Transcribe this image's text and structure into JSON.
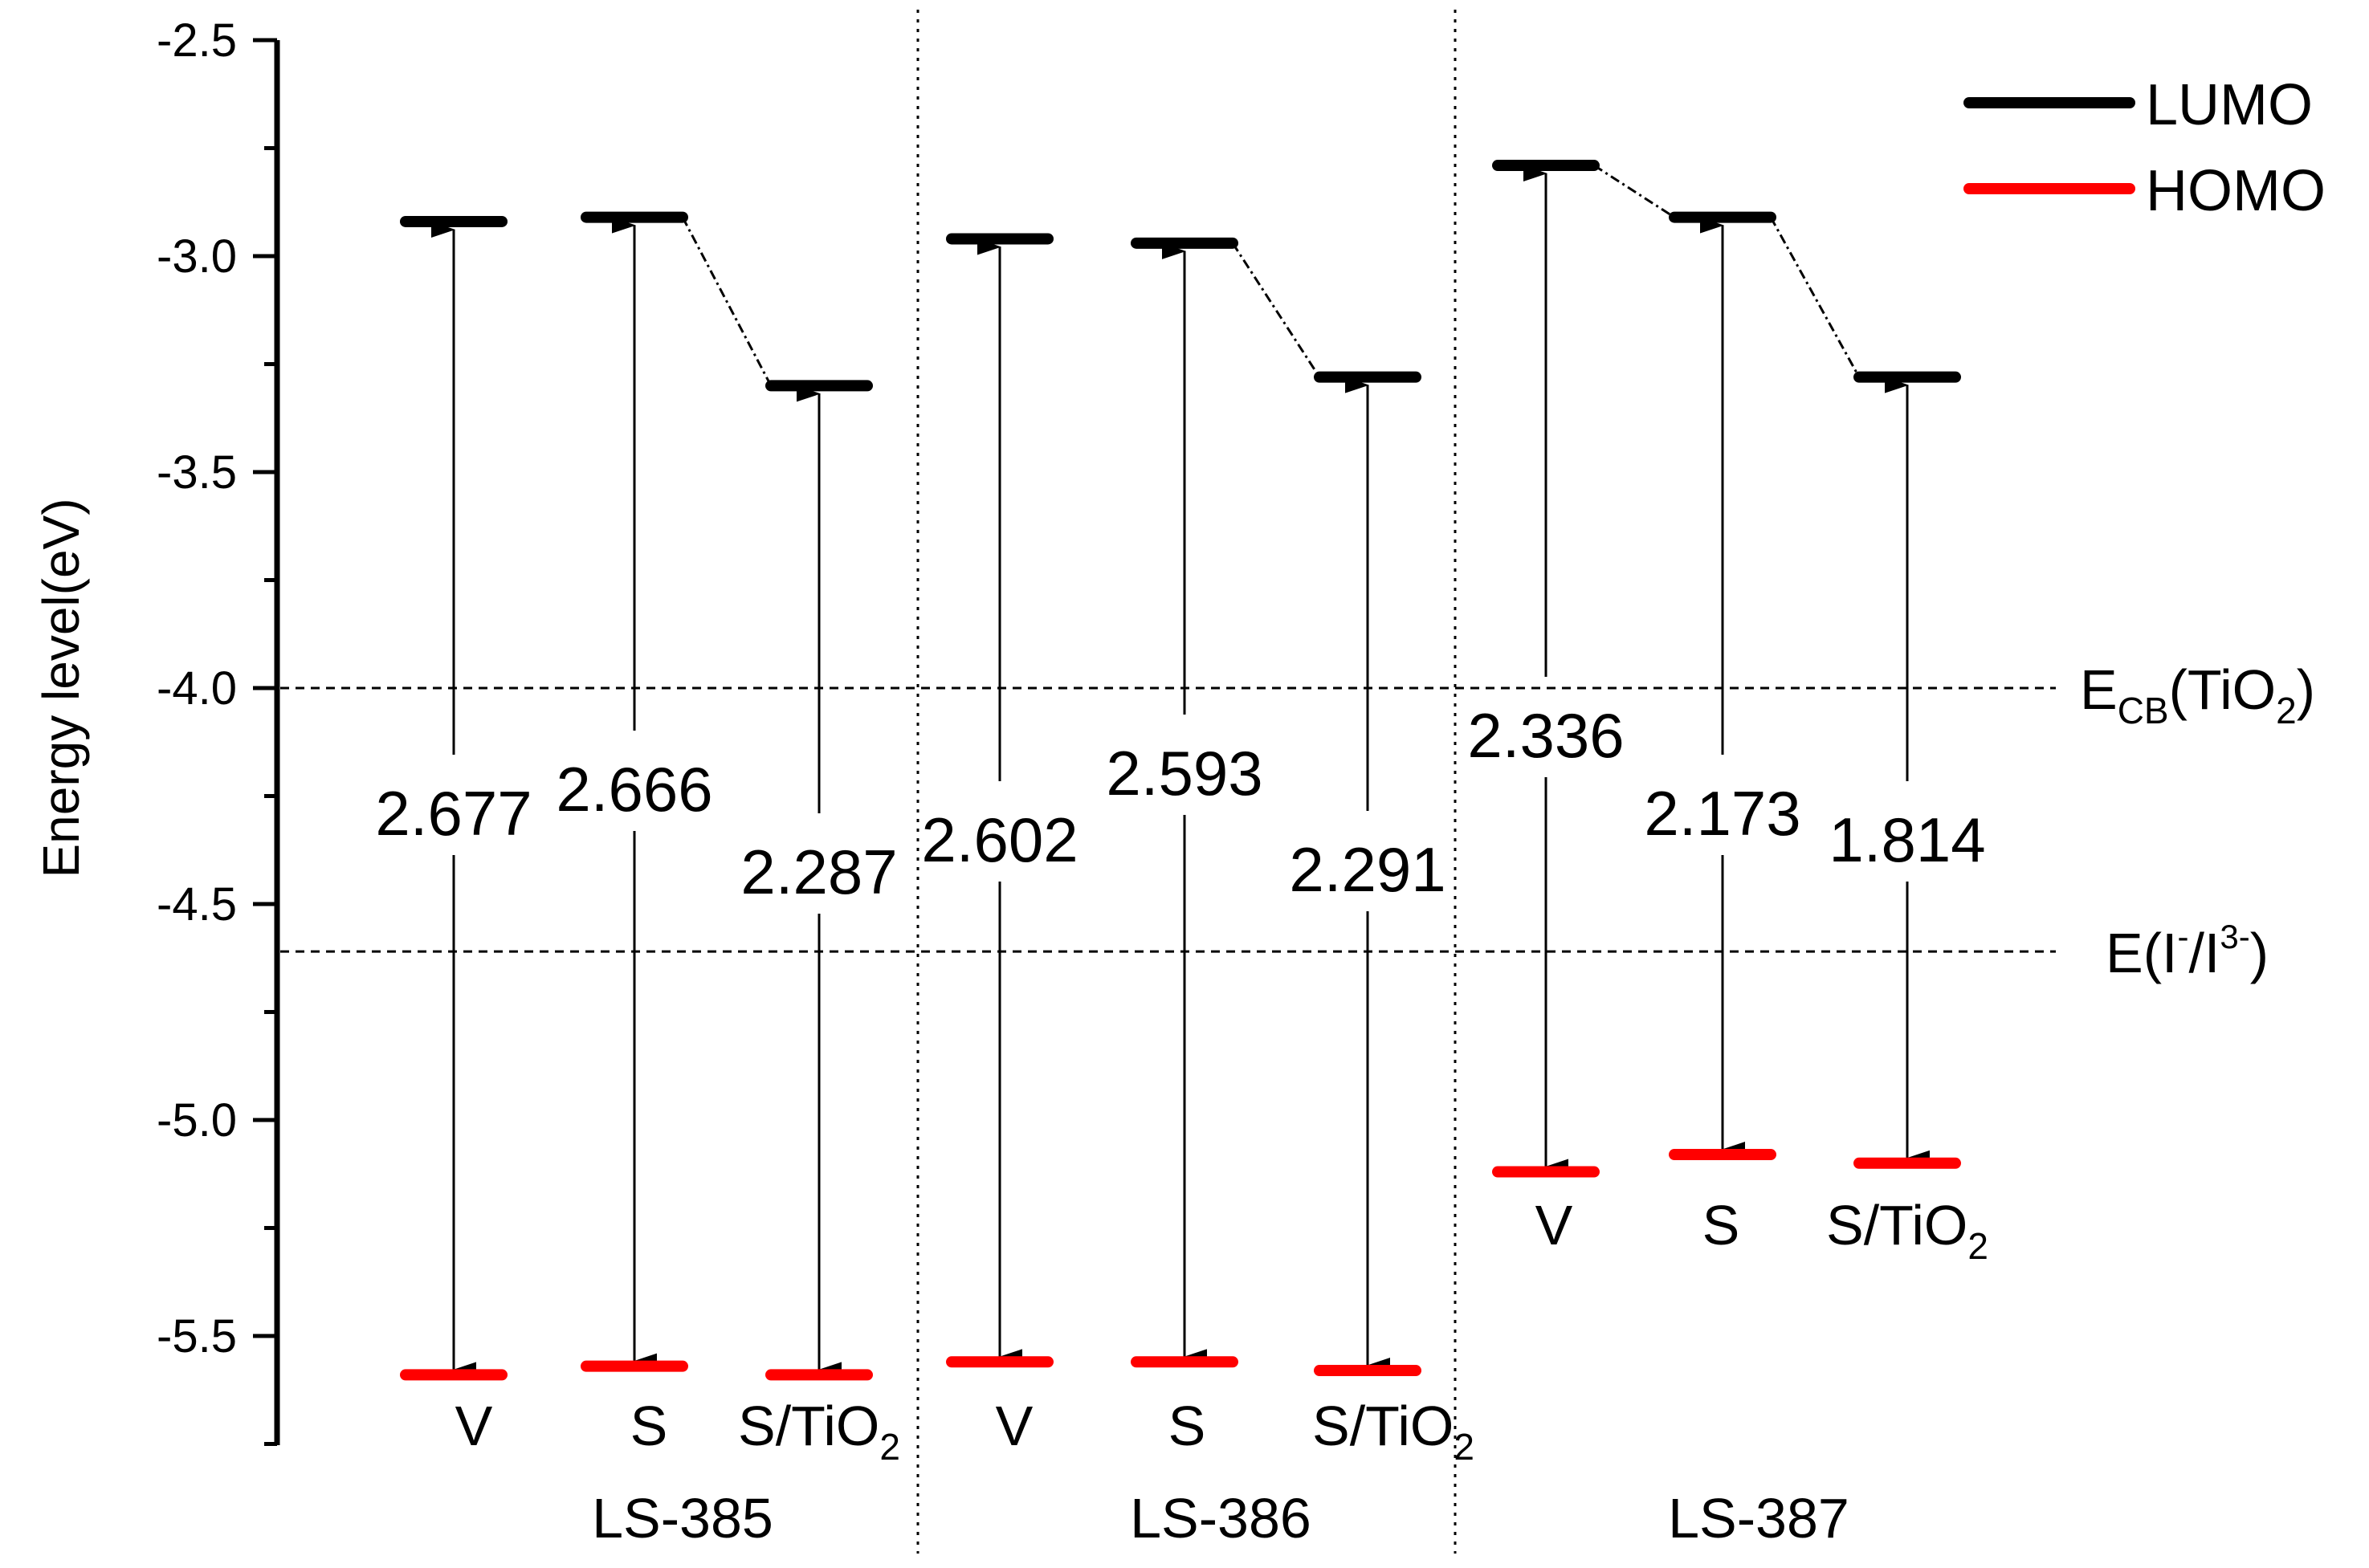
{
  "chart_data": {
    "type": "energy-level-diagram",
    "ylabel": "Energy level(eV)",
    "ylim": [
      -5.75,
      -2.5
    ],
    "yticks": [
      -2.5,
      -3.0,
      -3.5,
      -4.0,
      -4.5,
      -5.0,
      -5.5
    ],
    "ytick_labels": [
      "-2.5",
      "-3.0",
      "-3.5",
      "-4.0",
      "-4.5",
      "-5.0",
      "-5.5"
    ],
    "legend": [
      {
        "name": "LUMO",
        "color": "#000000"
      },
      {
        "name": "HOMO",
        "color": "#ff0000"
      }
    ],
    "reference_lines": [
      {
        "y": -4.0,
        "label_main": "E",
        "label_sub": "CB",
        "label_rest": "(TiO",
        "label_sub2": "2",
        "label_end": ")"
      },
      {
        "y": -4.61,
        "label_main": "E(I",
        "label_sup": "-",
        "label_mid": "/I",
        "label_sup2": "3-",
        "label_end": ")"
      }
    ],
    "groups": [
      {
        "name": "LS-385",
        "states": [
          {
            "label": "V",
            "label_sub": "",
            "lumo": -2.92,
            "homo": -5.59,
            "gap": "2.677"
          },
          {
            "label": "S",
            "label_sub": "",
            "lumo": -2.91,
            "homo": -5.57,
            "gap": "2.666"
          },
          {
            "label": "S/TiO",
            "label_sub": "2",
            "lumo": -3.3,
            "homo": -5.59,
            "gap": "2.287"
          }
        ]
      },
      {
        "name": "LS-386",
        "states": [
          {
            "label": "V",
            "label_sub": "",
            "lumo": -2.96,
            "homo": -5.56,
            "gap": "2.602"
          },
          {
            "label": "S",
            "label_sub": "",
            "lumo": -2.97,
            "homo": -5.56,
            "gap": "2.593"
          },
          {
            "label": "S/TiO",
            "label_sub": "2",
            "lumo": -3.28,
            "homo": -5.58,
            "gap": "2.291"
          }
        ]
      },
      {
        "name": "LS-387",
        "states": [
          {
            "label": "V",
            "label_sub": "",
            "lumo": -2.79,
            "homo": -5.12,
            "gap": "2.336"
          },
          {
            "label": "S",
            "label_sub": "",
            "lumo": -2.91,
            "homo": -5.08,
            "gap": "2.173"
          },
          {
            "label": "S/TiO",
            "label_sub": "2",
            "lumo": -3.28,
            "homo": -5.1,
            "gap": "1.814"
          }
        ]
      }
    ]
  }
}
